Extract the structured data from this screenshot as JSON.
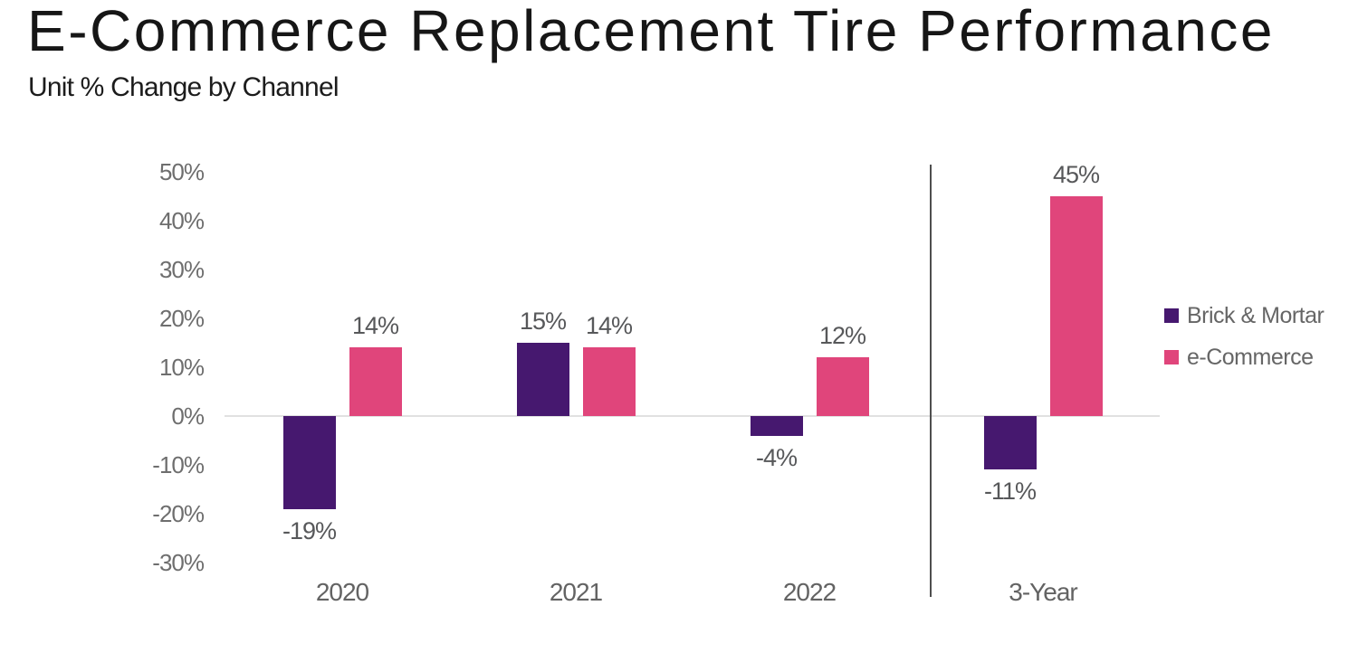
{
  "header": {
    "title": "E-Commerce Replacement Tire Performance",
    "subtitle": "Unit % Change by Channel"
  },
  "chart_data": {
    "type": "bar",
    "title": "E-Commerce Replacement Tire Performance",
    "subtitle": "Unit % Change by Channel",
    "categories": [
      "2020",
      "2021",
      "2022",
      "3-Year"
    ],
    "series": [
      {
        "name": "Brick & Mortar",
        "color": "#46186F",
        "values": [
          -19,
          15,
          -4,
          -11
        ],
        "labels": [
          "-19%",
          "15%",
          "-4%",
          "-11%"
        ]
      },
      {
        "name": "e-Commerce",
        "color": "#E0457B",
        "values": [
          14,
          14,
          12,
          45
        ],
        "labels": [
          "14%",
          "14%",
          "12%",
          "45%"
        ]
      }
    ],
    "y_ticks": [
      {
        "value": 50,
        "label": "50%"
      },
      {
        "value": 40,
        "label": "40%"
      },
      {
        "value": 30,
        "label": "30%"
      },
      {
        "value": 20,
        "label": "20%"
      },
      {
        "value": 10,
        "label": "10%"
      },
      {
        "value": 0,
        "label": "0%"
      },
      {
        "value": -10,
        "label": "-10%"
      },
      {
        "value": -20,
        "label": "-20%"
      },
      {
        "value": -30,
        "label": "-30%"
      }
    ],
    "ylim": [
      -30,
      50
    ],
    "xlabel": "",
    "ylabel": "",
    "grid": "zero-line-only",
    "legend_position": "right",
    "divider_between": [
      "2022",
      "3-Year"
    ]
  },
  "legend": {
    "items": [
      {
        "label": "Brick & Mortar",
        "color": "#46186F"
      },
      {
        "label": "e-Commerce",
        "color": "#E0457B"
      }
    ]
  },
  "colors": {
    "background": "#FFFFFF",
    "title_text": "#161616",
    "subtitle_text": "#1C1C1C",
    "axis_tick_text": "#6E6E6E",
    "category_text": "#636363",
    "data_label_text": "#57585A",
    "legend_text": "#666666",
    "zero_line": "#E1E1E1",
    "divider_line": "#4F4F4F"
  }
}
